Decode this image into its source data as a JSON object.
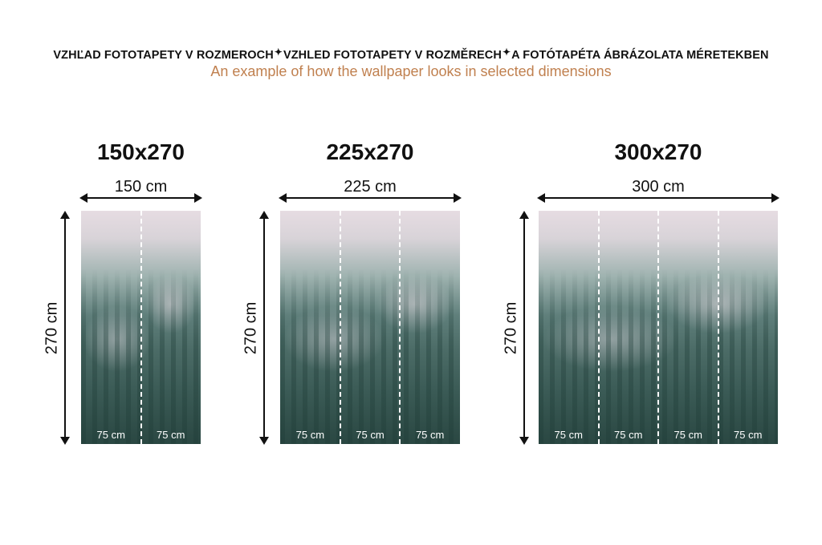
{
  "header": {
    "parts": [
      "VZHĽAD FOTOTAPETY V ROZMEROCH",
      "VZHLED FOTOTAPETY V ROZMĚRECH",
      "A FOTÓTAPÉTA ÁBRÁZOLATA MÉRETEKBEN"
    ],
    "separator": "✦",
    "subtitle": "An example of how the wallpaper looks in selected dimensions"
  },
  "colors": {
    "subtitle": "#c0804f",
    "sky": "#e6dce2",
    "forest": "#2a4742"
  },
  "panels": [
    {
      "title": "150x270",
      "width_label": "150 cm",
      "height_label": "270 cm",
      "segments": [
        "75 cm",
        "75 cm"
      ]
    },
    {
      "title": "225x270",
      "width_label": "225 cm",
      "height_label": "270 cm",
      "segments": [
        "75 cm",
        "75 cm",
        "75 cm"
      ]
    },
    {
      "title": "300x270",
      "width_label": "300 cm",
      "height_label": "270 cm",
      "segments": [
        "75 cm",
        "75 cm",
        "75 cm",
        "75 cm"
      ]
    }
  ]
}
